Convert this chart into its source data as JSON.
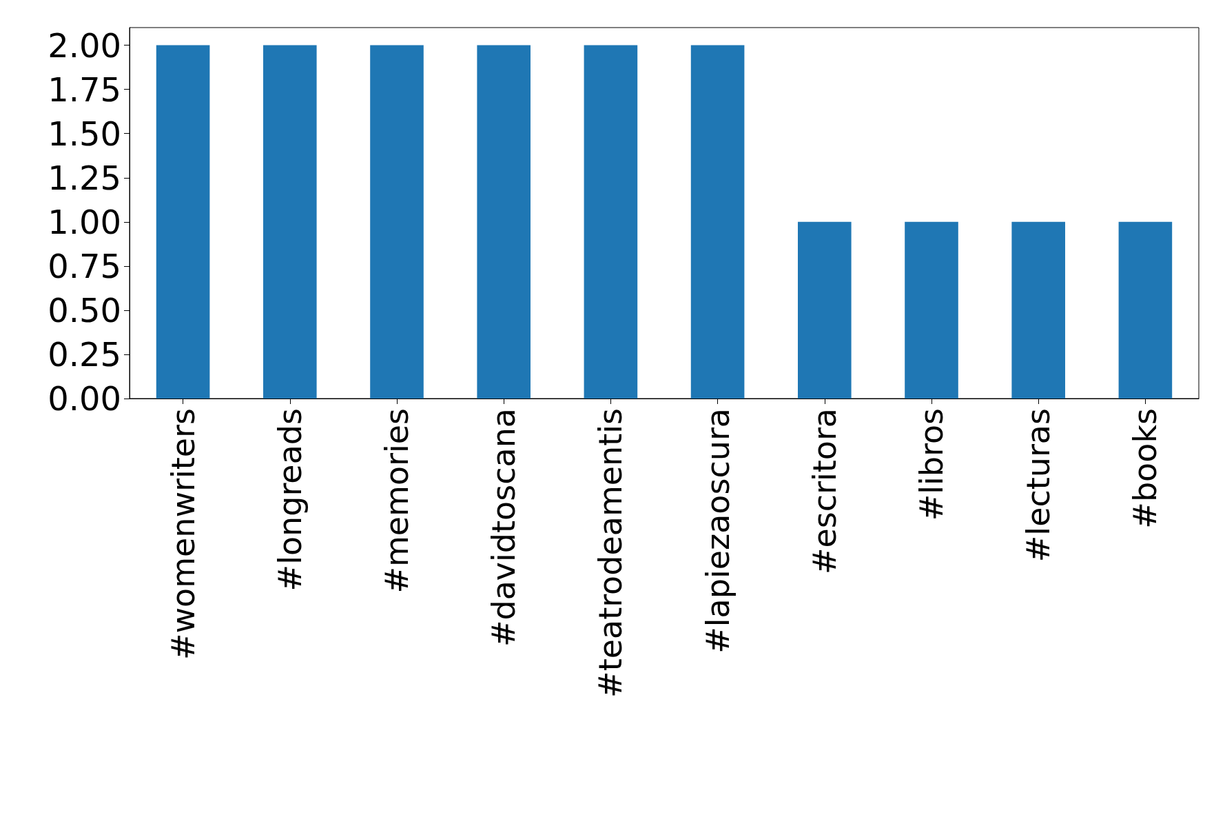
{
  "chart_data": {
    "type": "bar",
    "categories": [
      "#womenwriters",
      "#longreads",
      "#memories",
      "#davidtoscana",
      "#teatrodeamentis",
      "#lapiezaoscura",
      "#escritora",
      "#libros",
      "#lecturas",
      "#books"
    ],
    "values": [
      2,
      2,
      2,
      2,
      2,
      2,
      1,
      1,
      1,
      1
    ],
    "color": "#1f77b4",
    "ylim": [
      0,
      2.1
    ],
    "yticks": [
      {
        "value": 0,
        "label": "0.00"
      },
      {
        "value": 0.25,
        "label": "0.25"
      },
      {
        "value": 0.5,
        "label": "0.50"
      },
      {
        "value": 0.75,
        "label": "0.75"
      },
      {
        "value": 1,
        "label": "1.00"
      },
      {
        "value": 1.25,
        "label": "1.25"
      },
      {
        "value": 1.5,
        "label": "1.50"
      },
      {
        "value": 1.75,
        "label": "1.75"
      },
      {
        "value": 2,
        "label": "2.00"
      }
    ],
    "grid": false
  }
}
